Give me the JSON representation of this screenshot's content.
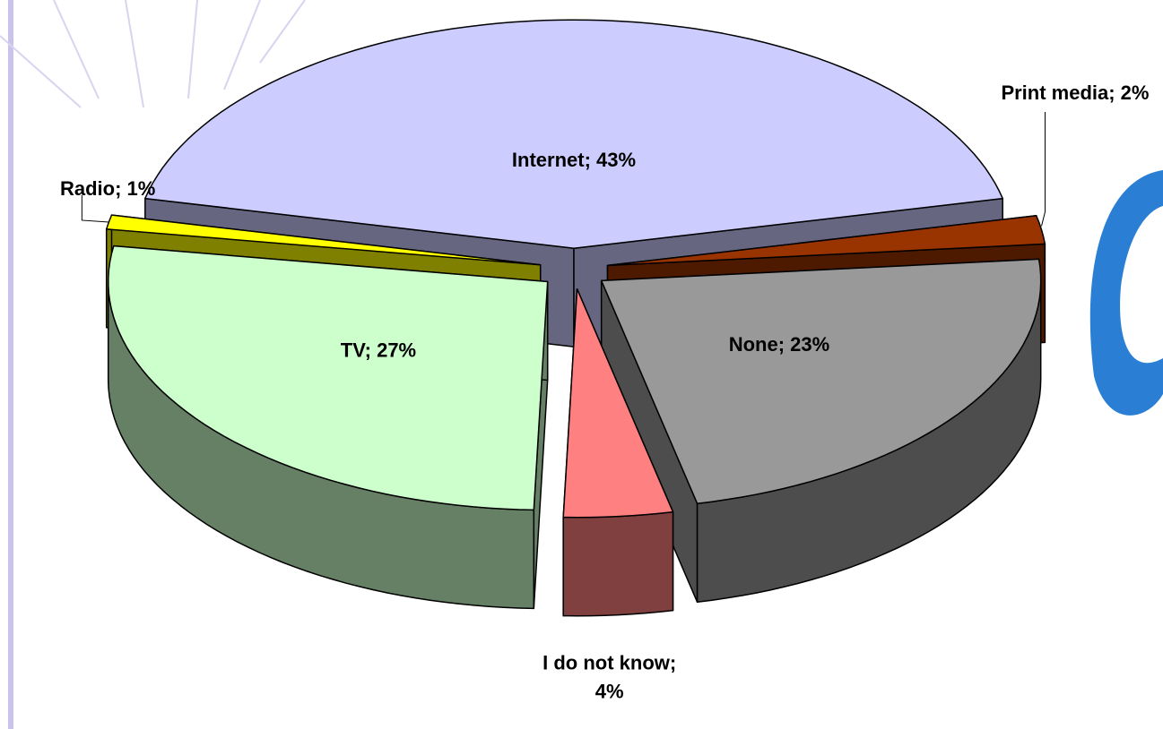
{
  "chart_data": {
    "type": "pie",
    "categories": [
      "Internet; 43%",
      "Print media; 2%",
      "None; 23%",
      "I do not know; 4%",
      "TV; 27%",
      "Radio; 1%"
    ],
    "values": [
      43,
      2,
      23,
      4,
      27,
      1
    ],
    "colors": [
      "#ccccff",
      "#993300",
      "#999999",
      "#ff8080",
      "#ccffcc",
      "#ffff00"
    ],
    "three_d": true,
    "exploded": true
  }
}
